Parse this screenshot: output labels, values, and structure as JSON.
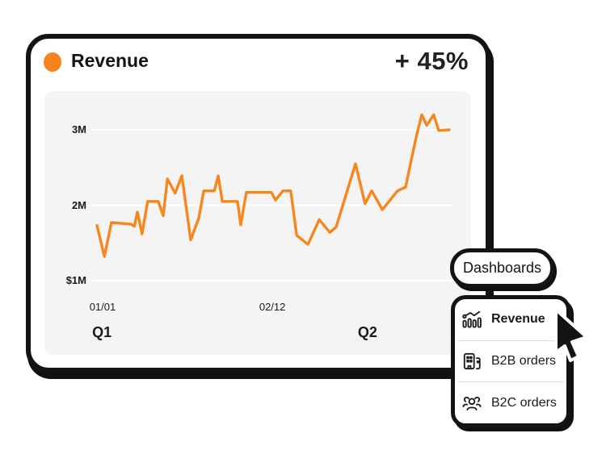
{
  "card": {
    "title": "Revenue",
    "delta": "+ 45%",
    "accent_color": "#F6831D"
  },
  "chart_data": {
    "type": "line",
    "title": "Revenue",
    "unit": "USD millions",
    "line_color": "#F6871F",
    "background": "#f4f4f4",
    "grid": "horizontal",
    "ylim": [
      0.8,
      3.5
    ],
    "y_ticks": [
      {
        "label": "3M",
        "value": 3
      },
      {
        "label": "2M",
        "value": 2
      },
      {
        "label": "$1M",
        "value": 1
      }
    ],
    "x_ticks": [
      {
        "label": "01/01",
        "f": 0.016
      },
      {
        "label": "02/12",
        "f": 0.498
      }
    ],
    "quarter_labels": [
      {
        "label": "Q1",
        "f": 0.014
      },
      {
        "label": "Q2",
        "f": 0.768
      }
    ],
    "points": [
      [
        0.0,
        1.73
      ],
      [
        0.021,
        1.32
      ],
      [
        0.041,
        1.77
      ],
      [
        0.096,
        1.75
      ],
      [
        0.106,
        1.72
      ],
      [
        0.115,
        1.91
      ],
      [
        0.128,
        1.62
      ],
      [
        0.144,
        2.05
      ],
      [
        0.174,
        2.05
      ],
      [
        0.188,
        1.86
      ],
      [
        0.2,
        2.35
      ],
      [
        0.222,
        2.16
      ],
      [
        0.241,
        2.39
      ],
      [
        0.266,
        1.54
      ],
      [
        0.289,
        1.83
      ],
      [
        0.303,
        2.19
      ],
      [
        0.333,
        2.19
      ],
      [
        0.344,
        2.39
      ],
      [
        0.356,
        2.05
      ],
      [
        0.399,
        2.05
      ],
      [
        0.408,
        1.74
      ],
      [
        0.424,
        2.17
      ],
      [
        0.495,
        2.17
      ],
      [
        0.507,
        2.07
      ],
      [
        0.528,
        2.19
      ],
      [
        0.55,
        2.19
      ],
      [
        0.567,
        1.6
      ],
      [
        0.599,
        1.48
      ],
      [
        0.631,
        1.81
      ],
      [
        0.661,
        1.64
      ],
      [
        0.679,
        1.71
      ],
      [
        0.734,
        2.55
      ],
      [
        0.761,
        2.02
      ],
      [
        0.78,
        2.19
      ],
      [
        0.81,
        1.94
      ],
      [
        0.853,
        2.19
      ],
      [
        0.876,
        2.24
      ],
      [
        0.906,
        2.9
      ],
      [
        0.922,
        3.2
      ],
      [
        0.936,
        3.06
      ],
      [
        0.956,
        3.2
      ],
      [
        0.97,
        2.99
      ],
      [
        1.0,
        3.0
      ]
    ]
  },
  "dashboards_button": {
    "label": "Dashboards"
  },
  "menu": {
    "items": [
      {
        "label": "Revenue",
        "icon": "trend-chart-icon",
        "selected": true
      },
      {
        "label": "B2B orders",
        "icon": "building-icon",
        "selected": false
      },
      {
        "label": "B2C orders",
        "icon": "people-icon",
        "selected": false
      }
    ]
  }
}
